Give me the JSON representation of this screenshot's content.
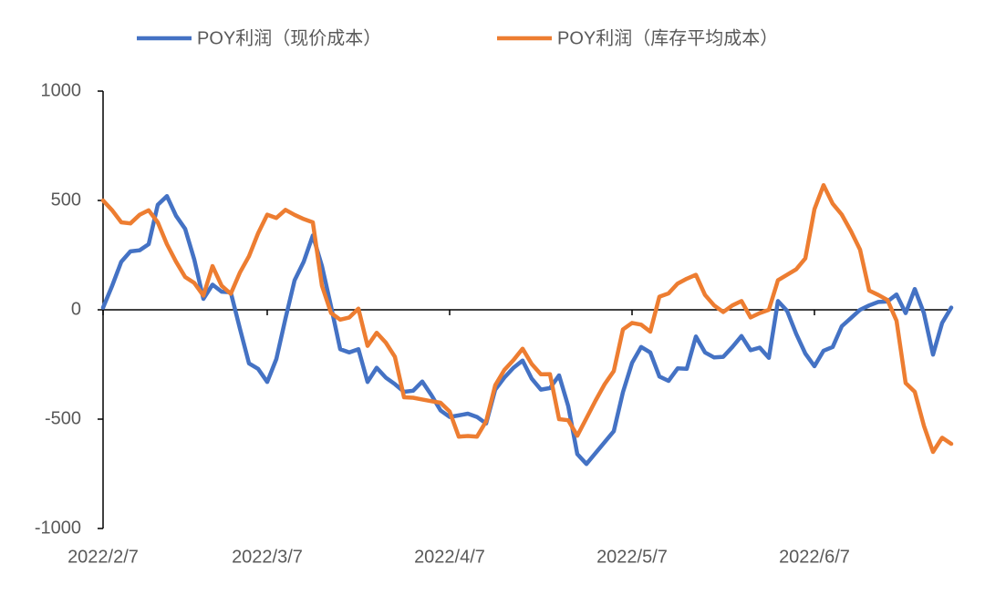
{
  "chart_data": {
    "type": "line",
    "categories": [
      "2022/2/7",
      null,
      null,
      null,
      null,
      null,
      null,
      null,
      null,
      null,
      null,
      null,
      null,
      null,
      null,
      null,
      null,
      null,
      "2022/3/7",
      null,
      null,
      null,
      null,
      null,
      null,
      null,
      null,
      null,
      null,
      null,
      null,
      null,
      null,
      null,
      null,
      null,
      null,
      null,
      "2022/4/7",
      null,
      null,
      null,
      null,
      null,
      null,
      null,
      null,
      null,
      null,
      null,
      null,
      null,
      null,
      null,
      null,
      null,
      null,
      null,
      "2022/5/7",
      null,
      null,
      null,
      null,
      null,
      null,
      null,
      null,
      null,
      null,
      null,
      null,
      null,
      null,
      null,
      null,
      null,
      null,
      null,
      "2022/6/7",
      null,
      null,
      null,
      null,
      null,
      null,
      null,
      null,
      null,
      null,
      null,
      null,
      null,
      null,
      null
    ],
    "series": [
      {
        "name": "POY利润（现价成本）",
        "color": "#4472c4",
        "values": [
          10,
          110,
          220,
          267,
          272,
          300,
          480,
          520,
          430,
          370,
          230,
          50,
          115,
          83,
          80,
          -85,
          -245,
          -270,
          -330,
          -225,
          -40,
          135,
          220,
          340,
          200,
          15,
          -180,
          -195,
          -180,
          -330,
          -265,
          -310,
          -340,
          -375,
          -370,
          -328,
          -390,
          -460,
          -490,
          -483,
          -475,
          -490,
          -520,
          -365,
          -310,
          -265,
          -232,
          -315,
          -365,
          -358,
          -300,
          -440,
          -660,
          -705,
          -655,
          -605,
          -555,
          -377,
          -243,
          -170,
          -195,
          -305,
          -325,
          -268,
          -270,
          -122,
          -195,
          -218,
          -215,
          -170,
          -120,
          -185,
          -173,
          -220,
          40,
          -5,
          -110,
          -200,
          -258,
          -187,
          -170,
          -75,
          -38,
          0,
          20,
          36,
          38,
          70,
          -15,
          95,
          -15,
          -205,
          -60,
          10
        ]
      },
      {
        "name": "POY利润（库存平均成本）",
        "color": "#ed7d31",
        "values": [
          500,
          455,
          400,
          395,
          434,
          455,
          400,
          300,
          220,
          150,
          123,
          65,
          200,
          110,
          73,
          170,
          245,
          350,
          435,
          420,
          457,
          434,
          415,
          400,
          110,
          -15,
          -45,
          -35,
          5,
          -165,
          -105,
          -150,
          -215,
          -400,
          -402,
          -410,
          -418,
          -425,
          -465,
          -580,
          -577,
          -580,
          -510,
          -345,
          -275,
          -230,
          -178,
          -248,
          -295,
          -294,
          -500,
          -505,
          -576,
          -496,
          -415,
          -340,
          -280,
          -90,
          -60,
          -68,
          -100,
          60,
          75,
          120,
          142,
          160,
          68,
          20,
          -10,
          20,
          40,
          -35,
          -15,
          0,
          135,
          160,
          185,
          235,
          460,
          570,
          485,
          435,
          360,
          275,
          88,
          68,
          45,
          -50,
          -335,
          -375,
          -530,
          -650,
          -585,
          -613
        ]
      }
    ],
    "ylim": [
      -1000,
      1000
    ],
    "yticks": [
      -1000,
      -500,
      0,
      500,
      1000
    ],
    "grid": false
  }
}
